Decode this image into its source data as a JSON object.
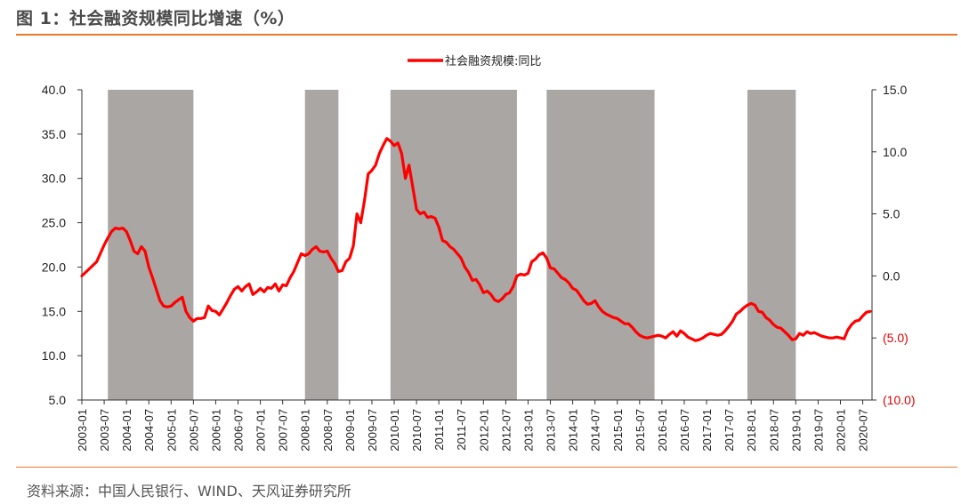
{
  "header": {
    "title": "图 1：社会融资规模同比增速（%）"
  },
  "footer": {
    "source": "资料来源：中国人民银行、WIND、天风证券研究所"
  },
  "colors": {
    "accent": "#e8772e",
    "series": "#ff0000",
    "shade": "#a9a6a4",
    "negative_axis": "#e00000"
  },
  "chart_data": {
    "type": "line",
    "title": "",
    "legend": {
      "entries": [
        "社会融资规模:同比"
      ],
      "placement": "top-center"
    },
    "left_axis": {
      "ylim": [
        5.0,
        40.0
      ],
      "ticks": [
        "40.0",
        "35.0",
        "30.0",
        "25.0",
        "20.0",
        "15.0",
        "10.0",
        "5.0"
      ]
    },
    "right_axis": {
      "ylim": [
        -10.0,
        15.0
      ],
      "ticks": [
        "15.0",
        "10.0",
        "5.0",
        "0.0",
        "(5.0)",
        "(10.0)"
      ]
    },
    "x_ticks": [
      "2003-01",
      "2003-07",
      "2004-01",
      "2004-07",
      "2005-01",
      "2005-07",
      "2006-01",
      "2006-07",
      "2007-01",
      "2007-07",
      "2008-01",
      "2008-07",
      "2009-01",
      "2009-07",
      "2010-01",
      "2010-07",
      "2011-01",
      "2011-07",
      "2012-01",
      "2012-07",
      "2013-01",
      "2013-07",
      "2014-01",
      "2014-07",
      "2015-01",
      "2015-07",
      "2016-01",
      "2016-07",
      "2017-01",
      "2017-07",
      "2018-01",
      "2018-07",
      "2019-01",
      "2019-07",
      "2020-01",
      "2020-07"
    ],
    "shaded_periods": [
      {
        "start": "2003-08",
        "end": "2005-07"
      },
      {
        "start": "2008-01",
        "end": "2008-10"
      },
      {
        "start": "2009-12",
        "end": "2012-10"
      },
      {
        "start": "2013-06",
        "end": "2015-11"
      },
      {
        "start": "2017-12",
        "end": "2019-01"
      }
    ],
    "series": [
      {
        "name": "社会融资规模:同比",
        "axis": "left",
        "points": [
          [
            "2003-01",
            19.0
          ],
          [
            "2003-03",
            19.8
          ],
          [
            "2003-05",
            20.6
          ],
          [
            "2003-07",
            22.5
          ],
          [
            "2003-08",
            23.3
          ],
          [
            "2003-09",
            24.0
          ],
          [
            "2003-10",
            24.4
          ],
          [
            "2003-11",
            24.3
          ],
          [
            "2003-12",
            24.4
          ],
          [
            "2004-01",
            24.0
          ],
          [
            "2004-02",
            23.0
          ],
          [
            "2004-03",
            21.8
          ],
          [
            "2004-04",
            21.5
          ],
          [
            "2004-05",
            22.3
          ],
          [
            "2004-06",
            21.8
          ],
          [
            "2004-07",
            20.0
          ],
          [
            "2004-08",
            18.8
          ],
          [
            "2004-09",
            17.5
          ],
          [
            "2004-10",
            16.2
          ],
          [
            "2004-11",
            15.6
          ],
          [
            "2004-12",
            15.5
          ],
          [
            "2005-01",
            15.6
          ],
          [
            "2005-02",
            16.0
          ],
          [
            "2005-03",
            16.3
          ],
          [
            "2005-04",
            16.6
          ],
          [
            "2005-05",
            15.0
          ],
          [
            "2005-06",
            14.3
          ],
          [
            "2005-07",
            13.9
          ],
          [
            "2005-08",
            14.2
          ],
          [
            "2005-09",
            14.2
          ],
          [
            "2005-10",
            14.3
          ],
          [
            "2005-11",
            15.6
          ],
          [
            "2005-12",
            15.1
          ],
          [
            "2006-01",
            15.0
          ],
          [
            "2006-02",
            14.6
          ],
          [
            "2006-03",
            15.3
          ],
          [
            "2006-04",
            16.0
          ],
          [
            "2006-05",
            16.8
          ],
          [
            "2006-06",
            17.5
          ],
          [
            "2006-07",
            17.8
          ],
          [
            "2006-08",
            17.3
          ],
          [
            "2006-09",
            17.8
          ],
          [
            "2006-10",
            18.1
          ],
          [
            "2006-11",
            16.9
          ],
          [
            "2006-12",
            17.2
          ],
          [
            "2007-01",
            17.6
          ],
          [
            "2007-02",
            17.2
          ],
          [
            "2007-03",
            17.7
          ],
          [
            "2007-04",
            17.6
          ],
          [
            "2007-05",
            18.1
          ],
          [
            "2007-06",
            17.3
          ],
          [
            "2007-07",
            18.0
          ],
          [
            "2007-08",
            17.9
          ],
          [
            "2007-09",
            18.8
          ],
          [
            "2007-10",
            19.5
          ],
          [
            "2007-11",
            20.5
          ],
          [
            "2007-12",
            21.5
          ],
          [
            "2008-01",
            21.3
          ],
          [
            "2008-02",
            21.5
          ],
          [
            "2008-03",
            22.0
          ],
          [
            "2008-04",
            22.3
          ],
          [
            "2008-05",
            21.8
          ],
          [
            "2008-06",
            21.7
          ],
          [
            "2008-07",
            21.8
          ],
          [
            "2008-08",
            21.0
          ],
          [
            "2008-09",
            20.4
          ],
          [
            "2008-10",
            19.5
          ],
          [
            "2008-11",
            19.6
          ],
          [
            "2008-12",
            20.6
          ],
          [
            "2009-01",
            21.0
          ],
          [
            "2009-02",
            22.4
          ],
          [
            "2009-03",
            26.0
          ],
          [
            "2009-04",
            25.0
          ],
          [
            "2009-05",
            27.5
          ],
          [
            "2009-06",
            30.5
          ],
          [
            "2009-07",
            30.9
          ],
          [
            "2009-08",
            31.5
          ],
          [
            "2009-09",
            32.8
          ],
          [
            "2009-10",
            33.7
          ],
          [
            "2009-11",
            34.5
          ],
          [
            "2009-12",
            34.2
          ],
          [
            "2010-01",
            33.7
          ],
          [
            "2010-02",
            34.0
          ],
          [
            "2010-03",
            32.8
          ],
          [
            "2010-04",
            30.0
          ],
          [
            "2010-05",
            31.5
          ],
          [
            "2010-06",
            29.0
          ],
          [
            "2010-07",
            26.5
          ],
          [
            "2010-08",
            26.0
          ],
          [
            "2010-09",
            26.2
          ],
          [
            "2010-10",
            25.6
          ],
          [
            "2010-11",
            25.7
          ],
          [
            "2010-12",
            25.5
          ],
          [
            "2011-01",
            24.5
          ],
          [
            "2011-02",
            23.0
          ],
          [
            "2011-03",
            22.8
          ],
          [
            "2011-04",
            22.3
          ],
          [
            "2011-05",
            22.0
          ],
          [
            "2011-06",
            21.5
          ],
          [
            "2011-07",
            21.0
          ],
          [
            "2011-08",
            20.0
          ],
          [
            "2011-09",
            19.4
          ],
          [
            "2011-10",
            18.5
          ],
          [
            "2011-11",
            18.6
          ],
          [
            "2011-12",
            18.0
          ],
          [
            "2012-01",
            17.1
          ],
          [
            "2012-02",
            17.3
          ],
          [
            "2012-03",
            16.9
          ],
          [
            "2012-04",
            16.3
          ],
          [
            "2012-05",
            16.1
          ],
          [
            "2012-06",
            16.4
          ],
          [
            "2012-07",
            16.9
          ],
          [
            "2012-08",
            17.1
          ],
          [
            "2012-09",
            17.8
          ],
          [
            "2012-10",
            19.0
          ],
          [
            "2012-11",
            19.2
          ],
          [
            "2012-12",
            19.1
          ],
          [
            "2013-01",
            19.3
          ],
          [
            "2013-02",
            20.6
          ],
          [
            "2013-03",
            20.9
          ],
          [
            "2013-04",
            21.4
          ],
          [
            "2013-05",
            21.6
          ],
          [
            "2013-06",
            21.0
          ],
          [
            "2013-07",
            19.9
          ],
          [
            "2013-08",
            19.8
          ],
          [
            "2013-09",
            19.3
          ],
          [
            "2013-10",
            18.8
          ],
          [
            "2013-11",
            18.6
          ],
          [
            "2013-12",
            18.2
          ],
          [
            "2014-01",
            17.6
          ],
          [
            "2014-02",
            17.4
          ],
          [
            "2014-03",
            16.8
          ],
          [
            "2014-04",
            16.2
          ],
          [
            "2014-05",
            15.8
          ],
          [
            "2014-06",
            15.9
          ],
          [
            "2014-07",
            16.2
          ],
          [
            "2014-08",
            15.5
          ],
          [
            "2014-09",
            15.0
          ],
          [
            "2014-10",
            14.7
          ],
          [
            "2014-11",
            14.5
          ],
          [
            "2014-12",
            14.3
          ],
          [
            "2015-01",
            14.2
          ],
          [
            "2015-02",
            13.9
          ],
          [
            "2015-03",
            13.6
          ],
          [
            "2015-04",
            13.6
          ],
          [
            "2015-05",
            13.2
          ],
          [
            "2015-06",
            12.7
          ],
          [
            "2015-07",
            12.3
          ],
          [
            "2015-08",
            12.1
          ],
          [
            "2015-09",
            12.0
          ],
          [
            "2015-10",
            12.1
          ],
          [
            "2015-11",
            12.2
          ],
          [
            "2015-12",
            12.3
          ],
          [
            "2016-01",
            12.2
          ],
          [
            "2016-02",
            12.0
          ],
          [
            "2016-03",
            12.4
          ],
          [
            "2016-04",
            12.7
          ],
          [
            "2016-05",
            12.2
          ],
          [
            "2016-06",
            12.8
          ],
          [
            "2016-07",
            12.5
          ],
          [
            "2016-08",
            12.1
          ],
          [
            "2016-09",
            11.9
          ],
          [
            "2016-10",
            11.7
          ],
          [
            "2016-11",
            11.8
          ],
          [
            "2016-12",
            12.0
          ],
          [
            "2017-01",
            12.3
          ],
          [
            "2017-02",
            12.5
          ],
          [
            "2017-03",
            12.4
          ],
          [
            "2017-04",
            12.3
          ],
          [
            "2017-05",
            12.4
          ],
          [
            "2017-06",
            12.8
          ],
          [
            "2017-07",
            13.3
          ],
          [
            "2017-08",
            13.9
          ],
          [
            "2017-09",
            14.7
          ],
          [
            "2017-10",
            15.0
          ],
          [
            "2017-11",
            15.4
          ],
          [
            "2017-12",
            15.7
          ],
          [
            "2018-01",
            15.9
          ],
          [
            "2018-02",
            15.7
          ],
          [
            "2018-03",
            15.0
          ],
          [
            "2018-04",
            14.9
          ],
          [
            "2018-05",
            14.3
          ],
          [
            "2018-06",
            14.0
          ],
          [
            "2018-07",
            13.5
          ],
          [
            "2018-08",
            13.2
          ],
          [
            "2018-09",
            13.1
          ],
          [
            "2018-10",
            12.7
          ],
          [
            "2018-11",
            12.3
          ],
          [
            "2018-12",
            11.8
          ],
          [
            "2019-01",
            11.9
          ],
          [
            "2019-02",
            12.5
          ],
          [
            "2019-03",
            12.3
          ],
          [
            "2019-04",
            12.7
          ],
          [
            "2019-05",
            12.5
          ],
          [
            "2019-06",
            12.6
          ],
          [
            "2019-07",
            12.4
          ],
          [
            "2019-08",
            12.2
          ],
          [
            "2019-09",
            12.1
          ],
          [
            "2019-10",
            12.0
          ],
          [
            "2019-11",
            12.0
          ],
          [
            "2019-12",
            12.1
          ],
          [
            "2020-01",
            12.0
          ],
          [
            "2020-02",
            11.9
          ],
          [
            "2020-03",
            12.9
          ],
          [
            "2020-04",
            13.5
          ],
          [
            "2020-05",
            13.9
          ],
          [
            "2020-06",
            14.0
          ],
          [
            "2020-07",
            14.5
          ],
          [
            "2020-08",
            14.9
          ],
          [
            "2020-09",
            15.0
          ]
        ]
      }
    ]
  }
}
